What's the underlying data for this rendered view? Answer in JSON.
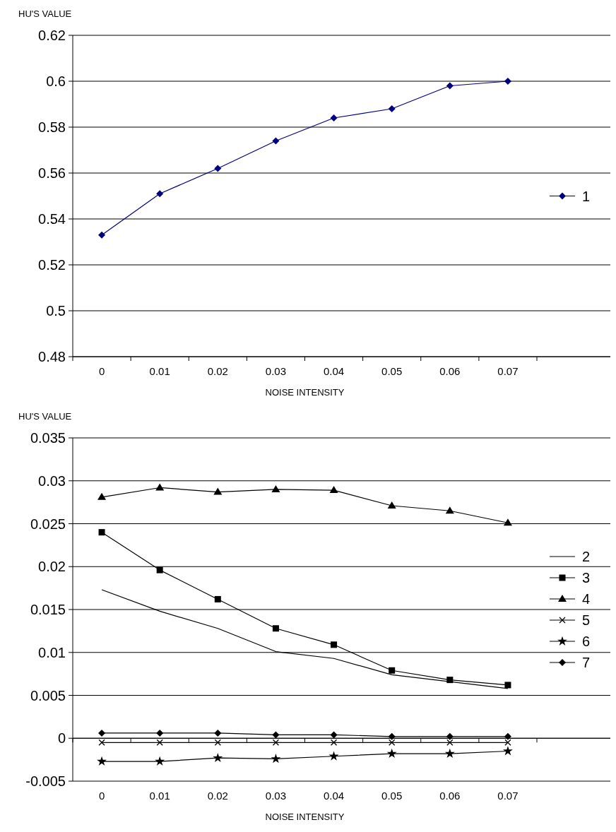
{
  "chart_data": [
    {
      "type": "line",
      "ylabel": "HU'S VALUE",
      "xlabel": "NOISE INTENSITY",
      "categories": [
        "0",
        "0.01",
        "0.02",
        "0.03",
        "0.04",
        "0.05",
        "0.06",
        "0.07"
      ],
      "ylim": [
        0.48,
        0.62
      ],
      "yticks": [
        0.48,
        0.5,
        0.52,
        0.54,
        0.56,
        0.58,
        0.6,
        0.62
      ],
      "grid": "y",
      "legend": "right",
      "series": [
        {
          "name": "1",
          "color": "#000080",
          "marker": "diamond",
          "values": [
            0.533,
            0.551,
            0.562,
            0.574,
            0.584,
            0.588,
            0.598,
            0.6
          ]
        }
      ]
    },
    {
      "type": "line",
      "ylabel": "HU'S VALUE",
      "xlabel": "NOISE INTENSITY",
      "categories": [
        "0",
        "0.01",
        "0.02",
        "0.03",
        "0.04",
        "0.05",
        "0.06",
        "0.07"
      ],
      "ylim": [
        -0.005,
        0.035
      ],
      "yticks": [
        {
          "value": -0.005,
          "label": "-0.005"
        },
        0,
        0.005,
        0.01,
        0.015,
        0.02,
        0.025,
        0.03,
        0.035
      ],
      "grid": "y",
      "legend": "right",
      "series": [
        {
          "name": "2",
          "color": "#000000",
          "marker": "none",
          "values": [
            0.0173,
            0.0148,
            0.0128,
            0.0101,
            0.0093,
            0.0074,
            0.0066,
            0.0058
          ]
        },
        {
          "name": "3",
          "color": "#000000",
          "marker": "square",
          "values": [
            0.024,
            0.0196,
            0.0162,
            0.0128,
            0.0109,
            0.0079,
            0.0068,
            0.0062
          ]
        },
        {
          "name": "4",
          "color": "#000000",
          "marker": "triangle",
          "values": [
            0.0281,
            0.0292,
            0.0287,
            0.029,
            0.0289,
            0.0271,
            0.0265,
            0.0251
          ]
        },
        {
          "name": "5",
          "color": "#000000",
          "marker": "cross",
          "values": [
            -0.0005,
            -0.0005,
            -0.0005,
            -0.0005,
            -0.0005,
            -0.0005,
            -0.0005,
            -0.0005
          ]
        },
        {
          "name": "6",
          "color": "#000000",
          "marker": "star",
          "values": [
            -0.0027,
            -0.0027,
            -0.0023,
            -0.0024,
            -0.0021,
            -0.0018,
            -0.0018,
            -0.0015
          ]
        },
        {
          "name": "7",
          "color": "#000000",
          "marker": "diamond",
          "values": [
            0.0006,
            0.0006,
            0.0006,
            0.0004,
            0.0004,
            0.0002,
            0.0002,
            0.0002
          ]
        }
      ]
    }
  ]
}
